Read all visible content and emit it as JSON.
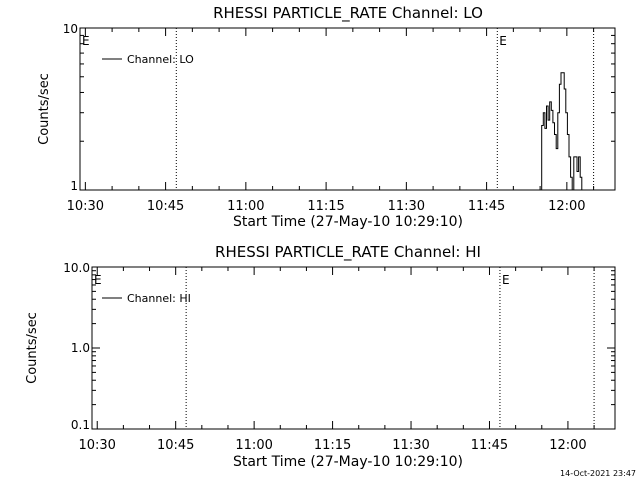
{
  "footer_timestamp": "14-Oct-2021 23:47",
  "chart_data": [
    {
      "type": "line",
      "title": "RHESSI PARTICLE_RATE Channel: LO",
      "xlabel": "Start Time (27-May-10 10:29:10)",
      "ylabel": "Counts/sec",
      "yscale": "log",
      "ylim": [
        1,
        10
      ],
      "ytick_labels": [
        "1",
        "10"
      ],
      "ytick_values": [
        1,
        10
      ],
      "xlim": [
        "10:29",
        "12:09"
      ],
      "xtick_labels": [
        "10:30",
        "10:45",
        "11:00",
        "11:15",
        "11:30",
        "11:45",
        "12:00"
      ],
      "event_markers": [
        {
          "label": "E",
          "time": "10:29"
        },
        {
          "label": "",
          "time": "10:47"
        },
        {
          "label": "E",
          "time": "11:47"
        },
        {
          "label": "",
          "time": "12:05"
        }
      ],
      "series": [
        {
          "name": "Channel: LO",
          "x": [
            "11:55",
            "11:55.3",
            "11:55.6",
            "11:55.9",
            "11:56.2",
            "11:56.5",
            "11:56.8",
            "11:57.1",
            "11:57.4",
            "11:57.7",
            "11:58",
            "11:58.3",
            "11:58.6",
            "11:58.9",
            "11:59.2",
            "11:59.5",
            "11:59.8",
            "12:00.1",
            "12:00.4",
            "12:00.7",
            "12:01",
            "12:01.3",
            "12:01.6",
            "12:01.9",
            "12:02.2",
            "12:02.5",
            "12:02.8",
            "12:03.1"
          ],
          "values": [
            1.0,
            2.5,
            3.0,
            2.4,
            3.3,
            2.7,
            3.5,
            3.1,
            2.6,
            2.2,
            1.8,
            3.0,
            4.5,
            5.3,
            5.3,
            4.2,
            3.0,
            2.2,
            1.6,
            1.2,
            1.0,
            1.6,
            1.6,
            1.3,
            1.6,
            1.2,
            1.0,
            1.0
          ]
        }
      ]
    },
    {
      "type": "line",
      "title": "RHESSI PARTICLE_RATE Channel: HI",
      "xlabel": "Start Time (27-May-10 10:29:10)",
      "ylabel": "Counts/sec",
      "yscale": "log",
      "ylim": [
        0.1,
        10
      ],
      "ytick_labels": [
        "0.1",
        "1.0",
        "10.0"
      ],
      "ytick_values": [
        0.1,
        1,
        10
      ],
      "xlim": [
        "10:29",
        "12:09"
      ],
      "xtick_labels": [
        "10:30",
        "10:45",
        "11:00",
        "11:15",
        "11:30",
        "11:45",
        "12:00"
      ],
      "event_markers": [
        {
          "label": "E",
          "time": "10:29"
        },
        {
          "label": "",
          "time": "10:47"
        },
        {
          "label": "E",
          "time": "11:47"
        },
        {
          "label": "",
          "time": "12:05"
        }
      ],
      "series": [
        {
          "name": "Channel: HI",
          "x": [],
          "values": []
        }
      ]
    }
  ]
}
